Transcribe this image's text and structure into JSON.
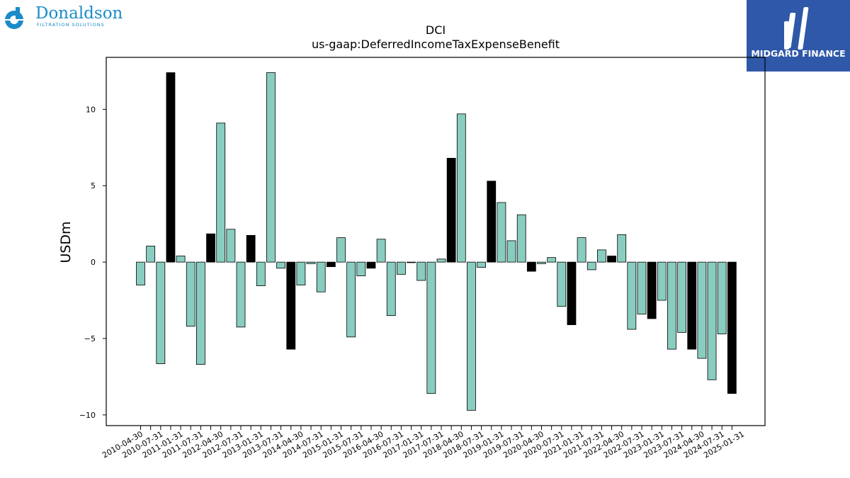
{
  "logos": {
    "left": {
      "name": "Donaldson",
      "tagline": "FILTRATION SOLUTIONS",
      "color": "#1b8bc9"
    },
    "right": {
      "name": "MIDGARD FINANCE",
      "background": "#2f58a8"
    }
  },
  "chart_data": {
    "type": "bar",
    "title": "DCI",
    "subtitle": "us-gaap:DeferredIncomeTaxExpenseBenefit",
    "xlabel": "",
    "ylabel": "USDm",
    "ylim": [
      -10.7,
      13.4
    ],
    "yticks": [
      -10,
      -5,
      0,
      5,
      10
    ],
    "ytick_labels": [
      "−10",
      "−5",
      "0",
      "5",
      "10"
    ],
    "grid": false,
    "colors": {
      "quarter": "#88cdbf",
      "annual": "#000000",
      "edge": "#000000"
    },
    "x_tick_labels": [
      "2010-04-30",
      "2010-07-31",
      "2011-01-31",
      "2011-07-31",
      "2012-04-30",
      "2012-07-31",
      "2013-01-31",
      "2013-07-31",
      "2014-04-30",
      "2014-07-31",
      "2015-01-31",
      "2015-07-31",
      "2016-04-30",
      "2016-07-31",
      "2017-01-31",
      "2017-07-31",
      "2018-04-30",
      "2018-07-31",
      "2019-01-31",
      "2019-07-31",
      "2020-04-30",
      "2020-07-31",
      "2021-01-31",
      "2021-07-31",
      "2022-04-30",
      "2022-07-31",
      "2023-01-31",
      "2023-07-31",
      "2024-04-30",
      "2024-07-31",
      "2025-01-31"
    ],
    "values": [
      -1.5,
      1.05,
      -6.65,
      12.4,
      0.4,
      -4.2,
      -6.7,
      1.85,
      9.1,
      2.15,
      -4.25,
      1.75,
      -1.55,
      12.4,
      -0.4,
      -5.7,
      -1.5,
      -0.1,
      -1.95,
      -0.3,
      1.6,
      -4.9,
      -0.9,
      -0.4,
      1.5,
      -3.5,
      -0.8,
      0.0,
      -1.2,
      -8.6,
      0.2,
      6.8,
      9.7,
      -9.7,
      -0.35,
      5.3,
      3.9,
      1.4,
      3.1,
      -0.6,
      -0.1,
      0.3,
      -2.9,
      -4.1,
      1.6,
      -0.5,
      0.8,
      0.4,
      1.8,
      -4.4,
      -3.4,
      -3.7,
      -2.5,
      -5.7,
      -4.6,
      -5.7,
      -6.3,
      -7.7,
      -4.7,
      -8.6
    ],
    "annual_flags": [
      0,
      0,
      0,
      1,
      0,
      0,
      0,
      1,
      0,
      0,
      0,
      1,
      0,
      0,
      0,
      1,
      0,
      0,
      0,
      1,
      0,
      0,
      0,
      1,
      0,
      0,
      0,
      0,
      0,
      0,
      0,
      1,
      0,
      0,
      0,
      1,
      0,
      0,
      0,
      1,
      0,
      0,
      0,
      1,
      0,
      0,
      0,
      1,
      0,
      0,
      0,
      1,
      0,
      0,
      0,
      1,
      0,
      0,
      0,
      1
    ]
  }
}
